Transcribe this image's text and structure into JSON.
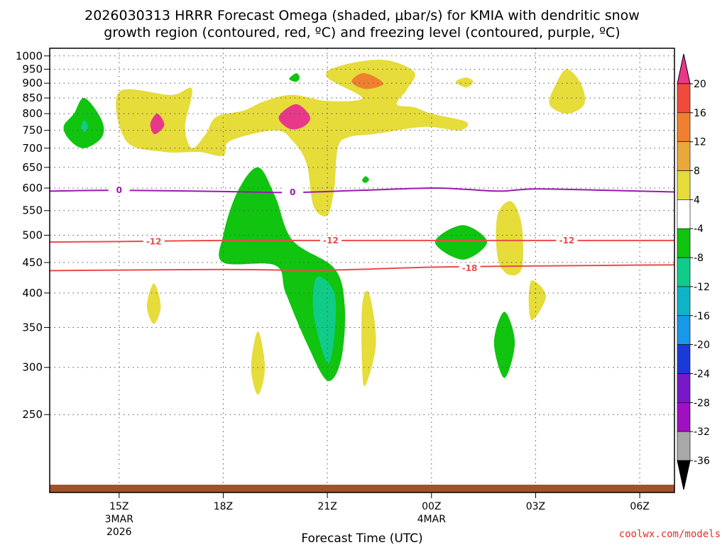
{
  "chart_data": {
    "type": "contour",
    "title_line1": "2026030313 HRRR Forecast Omega (shaded, μbar/s) for KMIA with dendritic snow",
    "title_line2": "growth region (contoured, red, ºC) and freezing level (contoured, purple, ºC)",
    "xlabel": "Forecast Time (UTC)",
    "x_ticks": [
      {
        "label": "15Z",
        "sub1": "3MAR",
        "sub2": "2026",
        "hour": 15
      },
      {
        "label": "18Z",
        "sub1": "",
        "sub2": "",
        "hour": 18
      },
      {
        "label": "21Z",
        "sub1": "",
        "sub2": "",
        "hour": 21
      },
      {
        "label": "00Z",
        "sub1": "4MAR",
        "sub2": "",
        "hour": 24
      },
      {
        "label": "03Z",
        "sub1": "",
        "sub2": "",
        "hour": 27
      },
      {
        "label": "06Z",
        "sub1": "",
        "sub2": "",
        "hour": 30
      }
    ],
    "x_range_hours": [
      13.0,
      31.0
    ],
    "y_axis": "pressure (hPa), inverted",
    "y_range": [
      1030,
      185
    ],
    "y_ticks": [
      250,
      300,
      350,
      400,
      450,
      500,
      550,
      600,
      650,
      700,
      750,
      800,
      850,
      900,
      950,
      1000
    ],
    "grid": true,
    "colorbar": {
      "labels": [
        "20",
        "16",
        "12",
        "8",
        "4",
        "-4",
        "-8",
        "-12",
        "-16",
        "-20",
        "-24",
        "-28",
        "-32",
        "-36"
      ],
      "colors_top_to_bottom": [
        "#e8388a",
        "#f04a3c",
        "#f08030",
        "#eaa83c",
        "#e6dc3a",
        "#ffffff",
        "#10c410",
        "#10cc88",
        "#10b4c8",
        "#1898e8",
        "#1a3ad8",
        "#7818c8",
        "#a010c0",
        "#a8a8a8",
        "#000000"
      ]
    },
    "contour_lines": [
      {
        "name": "dendritic-top",
        "value_label": "-18",
        "color": "#ee4a4a",
        "points": [
          [
            13.0,
            436
          ],
          [
            15,
            437
          ],
          [
            18,
            438
          ],
          [
            21,
            437
          ],
          [
            24,
            442
          ],
          [
            27,
            444
          ],
          [
            31,
            446
          ]
        ]
      },
      {
        "name": "dendritic-bottom",
        "value_label": "-12",
        "color": "#ee4a4a",
        "points": [
          [
            13.0,
            487
          ],
          [
            15,
            488
          ],
          [
            18,
            490
          ],
          [
            21,
            490
          ],
          [
            24,
            490
          ],
          [
            27,
            490
          ],
          [
            31,
            490
          ]
        ]
      },
      {
        "name": "freezing-level",
        "value_label": "0",
        "color": "#9a1ab0",
        "points": [
          [
            13.0,
            593
          ],
          [
            15,
            595
          ],
          [
            18,
            592
          ],
          [
            20,
            590
          ],
          [
            22,
            595
          ],
          [
            24,
            600
          ],
          [
            25,
            597
          ],
          [
            26,
            593
          ],
          [
            27,
            598
          ],
          [
            29,
            595
          ],
          [
            31,
            591
          ]
        ]
      }
    ],
    "contour_labels": [
      {
        "text": "-18",
        "hour": 25.1,
        "p": 440,
        "color": "#ee4a4a"
      },
      {
        "text": "-12",
        "hour": 16.0,
        "p": 488,
        "color": "#ee4a4a"
      },
      {
        "text": "-12",
        "hour": 21.1,
        "p": 490,
        "color": "#ee4a4a"
      },
      {
        "text": "-12",
        "hour": 27.9,
        "p": 490,
        "color": "#ee4a4a"
      },
      {
        "text": "0",
        "hour": 15.0,
        "p": 595,
        "color": "#9a1ab0"
      },
      {
        "text": "0",
        "hour": 20.0,
        "p": 590,
        "color": "#9a1ab0"
      }
    ],
    "shaded_regions": [
      {
        "name": "upward-motion-band",
        "range": "-8 to -4",
        "color": "#10c410",
        "points": [
          [
            18.0,
            450
          ],
          [
            19.5,
            445
          ],
          [
            19.8,
            400
          ],
          [
            20.4,
            330
          ],
          [
            21.0,
            285
          ],
          [
            21.4,
            310
          ],
          [
            21.5,
            380
          ],
          [
            21.2,
            440
          ],
          [
            20.0,
            490
          ],
          [
            19.5,
            580
          ],
          [
            19.0,
            650
          ],
          [
            18.4,
            590
          ],
          [
            18.0,
            500
          ]
        ]
      },
      {
        "name": "upward-motion-core",
        "range": "-12 to -8",
        "color": "#10cc88",
        "points": [
          [
            20.6,
            370
          ],
          [
            21.0,
            305
          ],
          [
            21.2,
            340
          ],
          [
            21.2,
            400
          ],
          [
            20.7,
            425
          ]
        ]
      },
      {
        "name": "green-cell-upper-right",
        "range": "-8 to -4",
        "color": "#10c410",
        "points": [
          [
            25.8,
            330
          ],
          [
            26.1,
            288
          ],
          [
            26.4,
            330
          ],
          [
            26.1,
            372
          ]
        ]
      },
      {
        "name": "green-cell-mid",
        "range": "-8 to -4",
        "color": "#10c410",
        "points": [
          [
            24.1,
            487
          ],
          [
            24.9,
            455
          ],
          [
            25.6,
            487
          ],
          [
            24.9,
            520
          ]
        ]
      },
      {
        "name": "green-cell-low-left",
        "range": "-8 to -4",
        "color": "#10c410",
        "points": [
          [
            13.4,
            760
          ],
          [
            13.6,
            720
          ],
          [
            14.0,
            700
          ],
          [
            14.5,
            730
          ],
          [
            14.5,
            780
          ],
          [
            14.0,
            850
          ],
          [
            13.7,
            800
          ]
        ]
      },
      {
        "name": "green-cell-low-left-core",
        "range": "-12 to -8",
        "color": "#10cc88",
        "points": [
          [
            13.9,
            760
          ],
          [
            14.0,
            745
          ],
          [
            14.1,
            760
          ],
          [
            14.0,
            780
          ]
        ]
      },
      {
        "name": "green-speck",
        "range": "-8 to -4",
        "color": "#10c410",
        "points": [
          [
            22.0,
            618
          ],
          [
            22.1,
            612
          ],
          [
            22.2,
            620
          ],
          [
            22.1,
            628
          ]
        ]
      },
      {
        "name": "green-speck-low",
        "range": "-8 to -4",
        "color": "#10c410",
        "points": [
          [
            19.9,
            915
          ],
          [
            20.1,
            905
          ],
          [
            20.2,
            920
          ],
          [
            20.1,
            935
          ]
        ]
      }
    ],
    "subsidence_regions": [
      {
        "name": "sinking-low-level-main",
        "range": "4 to 8",
        "color": "#e6dc3a",
        "points": [
          [
            15.0,
            870
          ],
          [
            15.2,
            720
          ],
          [
            16.3,
            690
          ],
          [
            17.3,
            690
          ],
          [
            18.0,
            680
          ],
          [
            18.2,
            720
          ],
          [
            19.5,
            750
          ],
          [
            20.0,
            720
          ],
          [
            20.4,
            660
          ],
          [
            20.6,
            560
          ],
          [
            21.0,
            540
          ],
          [
            21.2,
            600
          ],
          [
            21.3,
            700
          ],
          [
            21.6,
            730
          ],
          [
            22.4,
            740
          ],
          [
            23.8,
            760
          ],
          [
            24.8,
            750
          ],
          [
            25.0,
            775
          ],
          [
            24.0,
            800
          ],
          [
            23.5,
            820
          ],
          [
            23.0,
            830
          ],
          [
            23.3,
            880
          ],
          [
            23.5,
            940
          ],
          [
            22.6,
            985
          ],
          [
            21.3,
            960
          ],
          [
            21.0,
            920
          ],
          [
            22.0,
            850
          ],
          [
            21.0,
            840
          ],
          [
            20.0,
            860
          ],
          [
            19.2,
            840
          ],
          [
            18.6,
            810
          ],
          [
            17.8,
            790
          ],
          [
            17.5,
            740
          ],
          [
            17.1,
            700
          ],
          [
            16.9,
            760
          ],
          [
            17.1,
            880
          ],
          [
            16.5,
            860
          ]
        ]
      },
      {
        "name": "sinking-core-left",
        "range": "8 to 20",
        "color": "#e8388a",
        "points": [
          [
            15.9,
            770
          ],
          [
            16.0,
            740
          ],
          [
            16.2,
            750
          ],
          [
            16.3,
            770
          ],
          [
            16.1,
            800
          ]
        ]
      },
      {
        "name": "sinking-core-mid",
        "range": "8 to 20",
        "color": "#e8388a",
        "points": [
          [
            19.6,
            790
          ],
          [
            19.9,
            755
          ],
          [
            20.3,
            760
          ],
          [
            20.5,
            790
          ],
          [
            20.1,
            830
          ]
        ]
      },
      {
        "name": "sinking-core-low",
        "range": "8 to 12",
        "color": "#f08030",
        "points": [
          [
            21.7,
            905
          ],
          [
            22.1,
            880
          ],
          [
            22.6,
            895
          ],
          [
            22.4,
            920
          ],
          [
            22.0,
            935
          ]
        ]
      },
      {
        "name": "sinking-band-right",
        "range": "4 to 8",
        "color": "#e6dc3a",
        "points": [
          [
            25.9,
            460
          ],
          [
            26.2,
            430
          ],
          [
            26.6,
            440
          ],
          [
            26.6,
            520
          ],
          [
            26.3,
            570
          ],
          [
            25.9,
            540
          ]
        ]
      },
      {
        "name": "sinking-cell-far-right",
        "range": "4 to 8",
        "color": "#e6dc3a",
        "points": [
          [
            27.4,
            830
          ],
          [
            27.9,
            800
          ],
          [
            28.4,
            830
          ],
          [
            28.3,
            900
          ],
          [
            27.9,
            950
          ],
          [
            27.6,
            900
          ]
        ]
      },
      {
        "name": "sinking-cell-upper-mid",
        "range": "4 to 8",
        "color": "#e6dc3a",
        "points": [
          [
            22.0,
            300
          ],
          [
            22.1,
            280
          ],
          [
            22.4,
            330
          ],
          [
            22.2,
            400
          ],
          [
            22.0,
            380
          ]
        ]
      },
      {
        "name": "sinking-cell-upper-left",
        "range": "4 to 8",
        "color": "#e6dc3a",
        "points": [
          [
            18.8,
            300
          ],
          [
            19.0,
            270
          ],
          [
            19.2,
            300
          ],
          [
            19.0,
            345
          ]
        ]
      },
      {
        "name": "sinking-cell-left",
        "range": "4 to 8",
        "color": "#e6dc3a",
        "points": [
          [
            15.8,
            380
          ],
          [
            16.0,
            355
          ],
          [
            16.2,
            380
          ],
          [
            16.0,
            415
          ]
        ]
      },
      {
        "name": "sinking-cell-right-top",
        "range": "4 to 8",
        "color": "#e6dc3a",
        "points": [
          [
            26.8,
            390
          ],
          [
            26.9,
            360
          ],
          [
            27.3,
            395
          ],
          [
            26.9,
            420
          ]
        ]
      },
      {
        "name": "sinking-speck",
        "range": "4 to 8",
        "color": "#e6dc3a",
        "points": [
          [
            24.7,
            905
          ],
          [
            25.0,
            885
          ],
          [
            25.2,
            905
          ],
          [
            25.0,
            920
          ]
        ]
      }
    ],
    "ground_color": "#a0522d"
  },
  "credit": "coolwx.com/models"
}
